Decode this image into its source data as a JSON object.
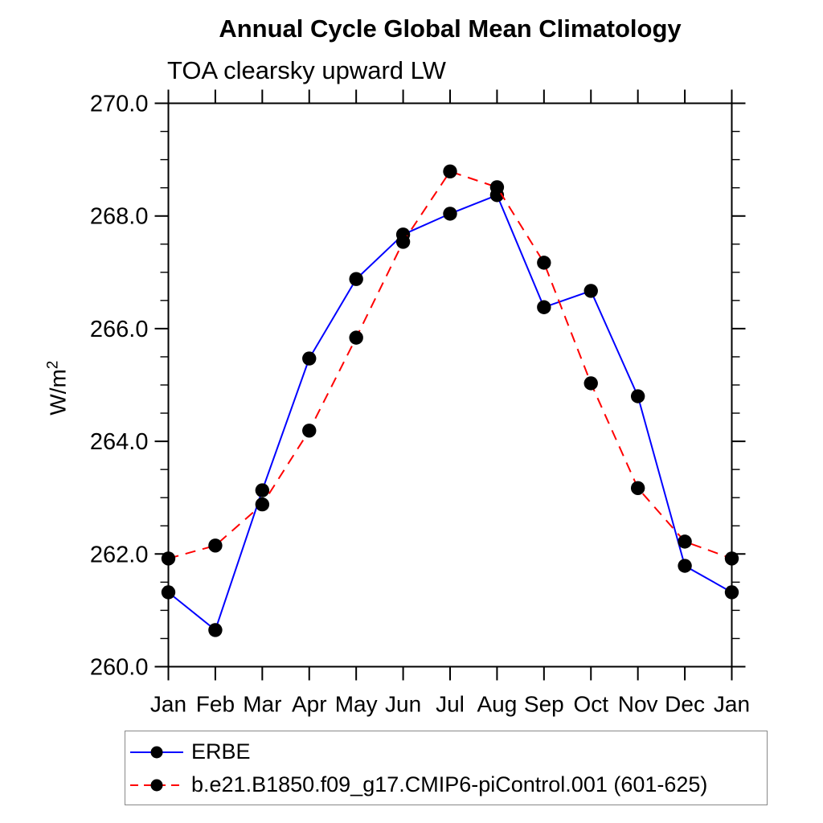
{
  "page": {
    "background": "#ffffff",
    "text_color": "#000000",
    "axis_color": "#000000"
  },
  "legend": {
    "border_color": "#888888",
    "entries": [
      {
        "label": "ERBE",
        "line_color": "#0000ff",
        "line_style": "solid",
        "marker": "filled-circle",
        "marker_color": "#000000"
      },
      {
        "label": "b.e21.B1850.f09_g17.CMIP6-piControl.001 (601-625)",
        "line_color": "#ff0000",
        "line_style": "dashed",
        "marker": "filled-circle",
        "marker_color": "#000000"
      }
    ]
  },
  "chart_data": {
    "type": "line",
    "title": "Annual Cycle Global Mean Climatology",
    "subtitle": "TOA clearsky upward LW",
    "ylabel_base": "W/m",
    "ylabel_exponent": "2",
    "x_categories": [
      "Jan",
      "Feb",
      "Mar",
      "Apr",
      "May",
      "Jun",
      "Jul",
      "Aug",
      "Sep",
      "Oct",
      "Nov",
      "Dec",
      "Jan"
    ],
    "ylim": [
      260.0,
      270.0
    ],
    "ytick_values": [
      270.0,
      268.0,
      266.0,
      264.0,
      262.0,
      260.0
    ],
    "ytick_labels": [
      "270.0",
      "268.0",
      "266.0",
      "264.0",
      "262.0",
      "260.0"
    ],
    "ytick_minor_interval": 0.5,
    "grid": "off",
    "legend_position": "bottom-left-box",
    "marker": "filled-circle",
    "marker_color": "#000000",
    "series": [
      {
        "name": "ERBE",
        "color": "#0000ff",
        "line_style": "solid",
        "values": [
          261.32,
          260.65,
          263.13,
          265.47,
          266.88,
          267.67,
          268.04,
          268.37,
          266.38,
          266.67,
          264.8,
          261.79,
          261.32
        ]
      },
      {
        "name": "b.e21.B1850.f09_g17.CMIP6-piControl.001 (601-625)",
        "color": "#ff0000",
        "line_style": "dashed",
        "values": [
          261.92,
          262.15,
          262.88,
          264.19,
          265.84,
          267.54,
          268.79,
          268.51,
          267.17,
          265.03,
          263.17,
          262.22,
          261.92
        ]
      }
    ]
  }
}
